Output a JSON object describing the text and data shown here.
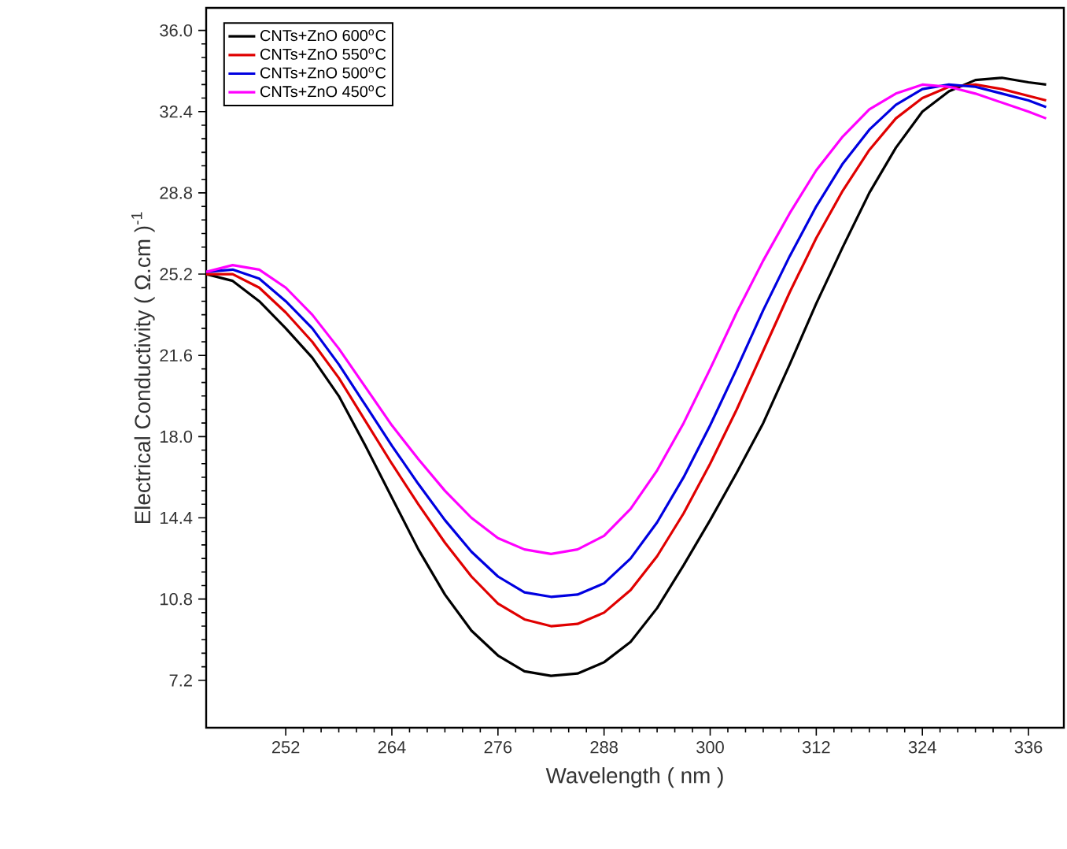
{
  "chart_data": {
    "type": "line",
    "xlabel": "Wavelength ( nm )",
    "ylabel": "Electrical Conductivity ( Ω.cm )$^{-1}$",
    "x": [
      243,
      246,
      249,
      252,
      255,
      258,
      261,
      264,
      267,
      270,
      273,
      276,
      279,
      282,
      285,
      288,
      291,
      294,
      297,
      300,
      303,
      306,
      309,
      312,
      315,
      318,
      321,
      324,
      327,
      330,
      333,
      336,
      338
    ],
    "series": [
      {
        "name": "CNTs+ZnO 600$^{o}$C",
        "color": "#000000",
        "values": [
          25.2,
          24.9,
          24.0,
          22.8,
          21.5,
          19.8,
          17.6,
          15.3,
          13.0,
          11.0,
          9.4,
          8.3,
          7.6,
          7.4,
          7.5,
          8.0,
          8.9,
          10.4,
          12.3,
          14.3,
          16.4,
          18.6,
          21.2,
          23.9,
          26.4,
          28.8,
          30.8,
          32.4,
          33.3,
          33.8,
          33.9,
          33.7,
          33.6
        ]
      },
      {
        "name": "CNTs+ZnO 550$^{o}$C",
        "color": "#e00000",
        "values": [
          25.2,
          25.2,
          24.6,
          23.5,
          22.2,
          20.6,
          18.7,
          16.8,
          15.0,
          13.3,
          11.8,
          10.6,
          9.9,
          9.6,
          9.7,
          10.2,
          11.2,
          12.7,
          14.6,
          16.8,
          19.2,
          21.8,
          24.4,
          26.8,
          28.9,
          30.7,
          32.1,
          33.0,
          33.5,
          33.6,
          33.4,
          33.1,
          32.9
        ]
      },
      {
        "name": "CNTs+ZnO 500$^{o}$C",
        "color": "#0000e0",
        "values": [
          25.3,
          25.4,
          25.0,
          24.0,
          22.8,
          21.2,
          19.4,
          17.6,
          15.9,
          14.3,
          12.9,
          11.8,
          11.1,
          10.9,
          11.0,
          11.5,
          12.6,
          14.2,
          16.2,
          18.5,
          21.0,
          23.6,
          26.0,
          28.2,
          30.1,
          31.6,
          32.7,
          33.4,
          33.6,
          33.5,
          33.2,
          32.9,
          32.6
        ]
      },
      {
        "name": "CNTs+ZnO 450$^{o}$C",
        "color": "#ff00ff",
        "values": [
          25.3,
          25.6,
          25.4,
          24.6,
          23.4,
          21.9,
          20.2,
          18.5,
          17.0,
          15.6,
          14.4,
          13.5,
          13.0,
          12.8,
          13.0,
          13.6,
          14.8,
          16.5,
          18.6,
          21.0,
          23.5,
          25.8,
          27.9,
          29.8,
          31.3,
          32.5,
          33.2,
          33.6,
          33.5,
          33.2,
          32.8,
          32.4,
          32.1
        ]
      }
    ],
    "xlim": [
      243,
      340
    ],
    "ylim": [
      5.1,
      37
    ],
    "xticks": [
      252,
      264,
      276,
      288,
      300,
      312,
      324,
      336
    ],
    "yticks": [
      {
        "value": 7.2,
        "label": "7.2"
      },
      {
        "value": 10.8,
        "label": "10.8"
      },
      {
        "value": 14.4,
        "label": "14.4"
      },
      {
        "value": 18.0,
        "label": "18.0"
      },
      {
        "value": 21.6,
        "label": "21.6"
      },
      {
        "value": 25.2,
        "label": "25.2"
      },
      {
        "value": 28.8,
        "label": "28.8"
      },
      {
        "value": 32.4,
        "label": "32.4"
      },
      {
        "value": 36.0,
        "label": "36.0"
      }
    ],
    "legend": "top left",
    "grid": false,
    "marker": "none",
    "line_style": "solid"
  }
}
